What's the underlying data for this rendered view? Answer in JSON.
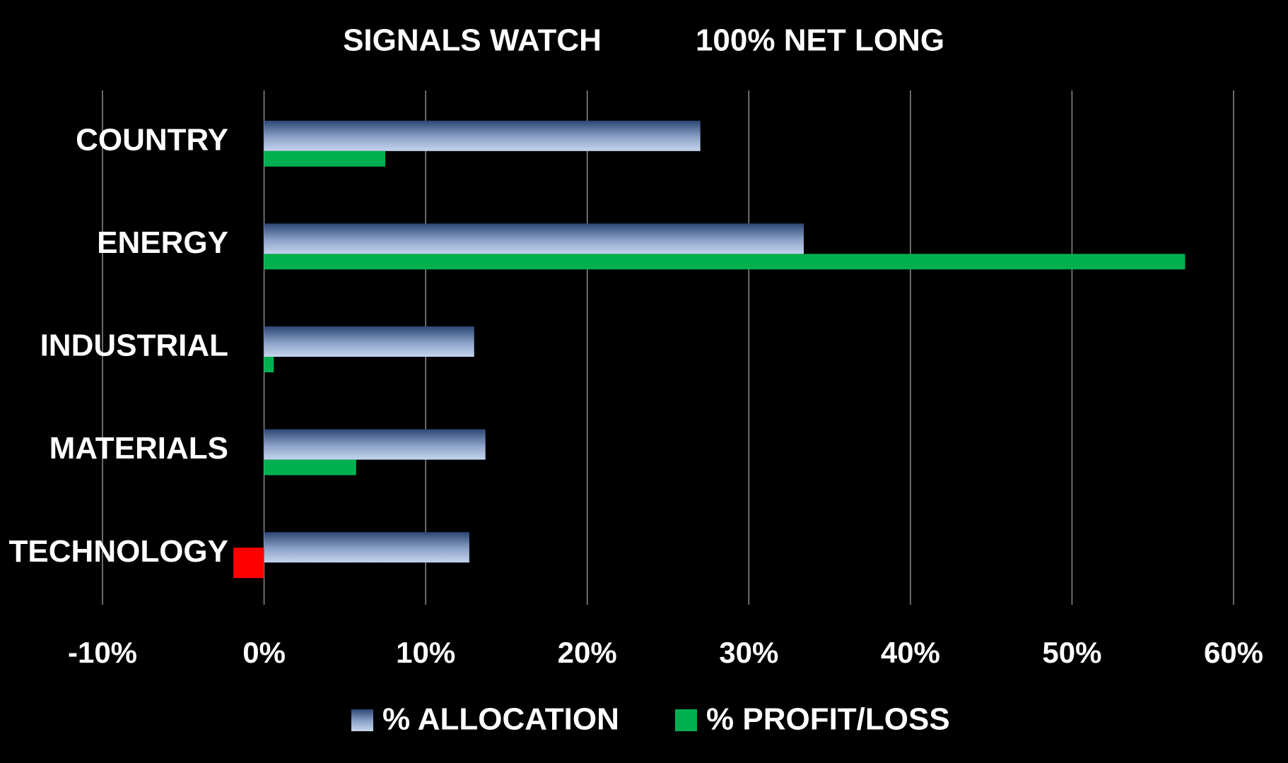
{
  "chart_data": {
    "type": "hbar",
    "title": "SIGNALS WATCH",
    "subtitle": "100% NET LONG",
    "categories": [
      "COUNTRY",
      "ENERGY",
      "INDUSTRIAL",
      "MATERIALS",
      "TECHNOLOGY"
    ],
    "series": [
      {
        "name": "% ALLOCATION",
        "color": "#c5d5ee",
        "values": [
          27,
          33.4,
          13,
          13.7,
          12.7
        ]
      },
      {
        "name": "% PROFIT/LOSS",
        "color": "#00b050",
        "negative_color": "#ff0000",
        "values": [
          7.5,
          57,
          0.6,
          5.7,
          -1.9
        ]
      }
    ],
    "xlim": [
      -10,
      60
    ],
    "xticks": [
      {
        "value": -10,
        "label": "-10%"
      },
      {
        "value": 0,
        "label": "0%"
      },
      {
        "value": 10,
        "label": "10%"
      },
      {
        "value": 20,
        "label": "20%"
      },
      {
        "value": 30,
        "label": "30%"
      },
      {
        "value": 40,
        "label": "40%"
      },
      {
        "value": 50,
        "label": "50%"
      },
      {
        "value": 60,
        "label": "60%"
      }
    ],
    "grid": true,
    "legend": "bottom"
  }
}
